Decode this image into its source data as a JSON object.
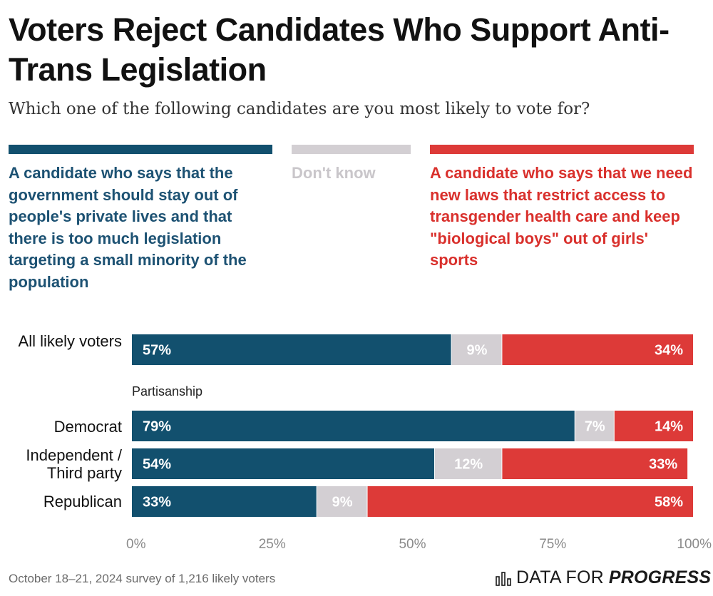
{
  "title": "Voters Reject Candidates Who Support Anti-Trans Legislation",
  "subtitle": "Which one of the following candidates are you most likely to vote for?",
  "legend": [
    {
      "text": "A candidate who says that the government should stay out of people's private lives and that there is too much legislation targeting a small minority of the population",
      "color": "#12506e"
    },
    {
      "text": "Don't know",
      "color": "#d3cfd3"
    },
    {
      "text": "A candidate who says that we need new laws that restrict access to transgender health care and keep \"biological boys\" out of girls' sports",
      "color": "#dd3a38"
    }
  ],
  "section_label": "Partisanship",
  "row_labels": {
    "all": "All likely voters",
    "dem": "Democrat",
    "ind": "Independent / Third party",
    "rep": "Republican"
  },
  "chart_data": {
    "type": "bar",
    "orientation": "horizontal",
    "stacked": true,
    "categories": [
      "All likely voters",
      "Democrat",
      "Independent / Third party",
      "Republican"
    ],
    "series": [
      {
        "name": "Government should stay out of people's private lives",
        "values": [
          57,
          79,
          54,
          33
        ],
        "color": "#12506e"
      },
      {
        "name": "Don't know",
        "values": [
          9,
          7,
          12,
          9
        ],
        "color": "#d3cfd3"
      },
      {
        "name": "New laws restricting transgender health care and sports",
        "values": [
          34,
          14,
          33,
          58
        ],
        "color": "#dd3a38"
      }
    ],
    "xlim": [
      0,
      100
    ],
    "xticks": [
      "0%",
      "25%",
      "50%",
      "75%",
      "100%"
    ],
    "value_suffix": "%"
  },
  "footer": {
    "note": "October 18–21, 2024 survey of 1,216 likely voters",
    "brand_light": "DATA FOR",
    "brand_bold": "PROGRESS"
  }
}
